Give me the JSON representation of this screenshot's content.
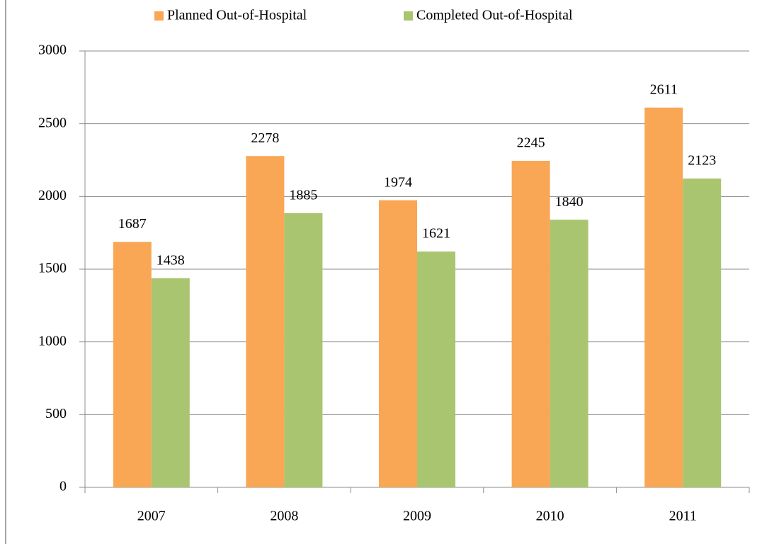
{
  "chart_data": {
    "type": "bar",
    "categories": [
      "2007",
      "2008",
      "2009",
      "2010",
      "2011"
    ],
    "series": [
      {
        "name": "Planned Out-of-Hospital",
        "color": "#f9a655",
        "values": [
          1687,
          2278,
          1974,
          2245,
          2611
        ]
      },
      {
        "name": "Completed Out-of-Hospital",
        "color": "#aac56f",
        "values": [
          1438,
          1885,
          1621,
          1840,
          2123
        ]
      }
    ],
    "ylim": [
      0,
      3000
    ],
    "yticks": [
      0,
      500,
      1000,
      1500,
      2000,
      2500,
      3000
    ],
    "grid": true,
    "legend": "top"
  }
}
